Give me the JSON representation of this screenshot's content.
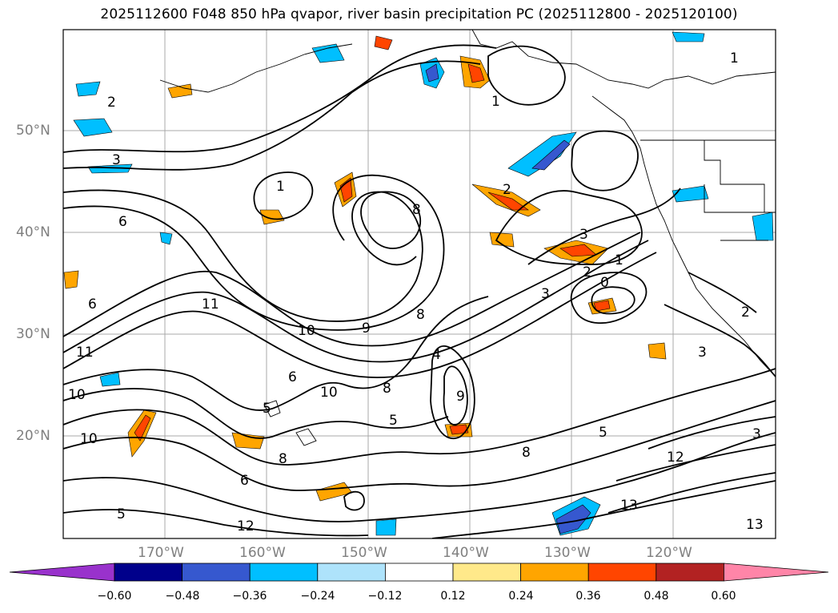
{
  "title": "2025112600 F048 850 hPa qvapor, river basin precipitation PC (2025112800 - 2025120100)",
  "map": {
    "lat_labels": [
      "50°N",
      "40°N",
      "30°N",
      "20°N"
    ],
    "lon_labels": [
      "170°W",
      "160°W",
      "150°W",
      "140°W",
      "130°W",
      "120°W"
    ],
    "contour_labels": [
      "1",
      "2",
      "3",
      "6",
      "8",
      "8",
      "10",
      "11",
      "11",
      "10",
      "10",
      "9",
      "8",
      "6",
      "5",
      "5",
      "8",
      "10",
      "12",
      "13",
      "13",
      "12",
      "3",
      "2",
      "0",
      "1",
      "1",
      "2",
      "3",
      "1",
      "6",
      "9",
      "8",
      "5",
      "6",
      "5",
      "4",
      "3",
      "2",
      "3"
    ]
  },
  "colorbar": {
    "ticks": [
      "−0.60",
      "−0.48",
      "−0.36",
      "−0.24",
      "−0.12",
      "0.12",
      "0.24",
      "0.36",
      "0.48",
      "0.60"
    ],
    "colors": [
      "#9932cc",
      "#00008b",
      "#3658cf",
      "#00bfff",
      "#aee3fb",
      "#ffffff",
      "#ffe98a",
      "#ffa500",
      "#ff4500",
      "#b22222",
      "#ff85a8",
      "#ff85a8"
    ]
  }
}
